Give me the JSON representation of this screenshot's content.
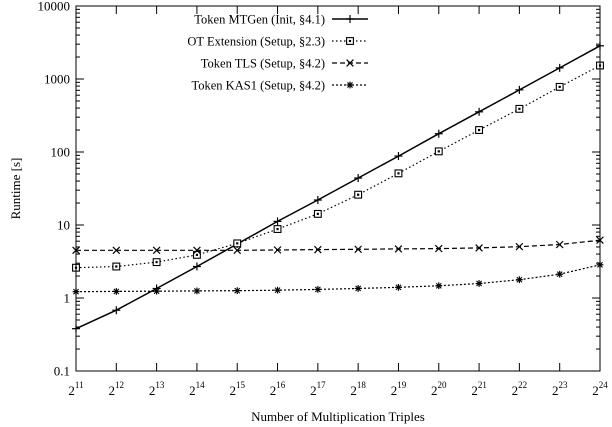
{
  "chart_data": {
    "type": "line",
    "xlabel": "Number of Multiplication Triples",
    "ylabel": "Runtime [s]",
    "yscale": "log",
    "ylim": [
      0.1,
      10000
    ],
    "x_ticks": [
      {
        "base": "2",
        "exp": "11"
      },
      {
        "base": "2",
        "exp": "12"
      },
      {
        "base": "2",
        "exp": "13"
      },
      {
        "base": "2",
        "exp": "14"
      },
      {
        "base": "2",
        "exp": "15"
      },
      {
        "base": "2",
        "exp": "16"
      },
      {
        "base": "2",
        "exp": "17"
      },
      {
        "base": "2",
        "exp": "18"
      },
      {
        "base": "2",
        "exp": "19"
      },
      {
        "base": "2",
        "exp": "20"
      },
      {
        "base": "2",
        "exp": "21"
      },
      {
        "base": "2",
        "exp": "22"
      },
      {
        "base": "2",
        "exp": "23"
      },
      {
        "base": "2",
        "exp": "24"
      }
    ],
    "y_ticks": [
      "0.1",
      "1",
      "10",
      "100",
      "1000",
      "10000"
    ],
    "x_exponents": [
      11,
      12,
      13,
      14,
      15,
      16,
      17,
      18,
      19,
      20,
      21,
      22,
      23,
      24
    ],
    "grid": false,
    "legend_position": "top-left",
    "series": [
      {
        "name": "Token MTGen (Init, §4.1)",
        "marker": "plus",
        "dash": "solid",
        "values": [
          0.38,
          0.68,
          1.35,
          2.7,
          5.5,
          11.2,
          22,
          44,
          88,
          178,
          355,
          710,
          1420,
          2850
        ]
      },
      {
        "name": "OT Extension (Setup, §2.3)",
        "marker": "square",
        "dash": "dotted",
        "values": [
          2.6,
          2.7,
          3.1,
          3.9,
          5.6,
          8.8,
          14.2,
          26,
          51,
          102,
          200,
          390,
          780,
          1530
        ]
      },
      {
        "name": "Token TLS (Setup, §4.2)",
        "marker": "x",
        "dash": "dashed",
        "values": [
          4.5,
          4.5,
          4.5,
          4.5,
          4.5,
          4.55,
          4.6,
          4.65,
          4.7,
          4.75,
          4.85,
          5.05,
          5.4,
          6.2
        ]
      },
      {
        "name": "Token KAS1 (Setup, §4.2)",
        "marker": "star",
        "dash": "densedot",
        "values": [
          1.22,
          1.23,
          1.24,
          1.25,
          1.26,
          1.28,
          1.31,
          1.35,
          1.4,
          1.47,
          1.58,
          1.78,
          2.12,
          2.85
        ]
      }
    ]
  }
}
